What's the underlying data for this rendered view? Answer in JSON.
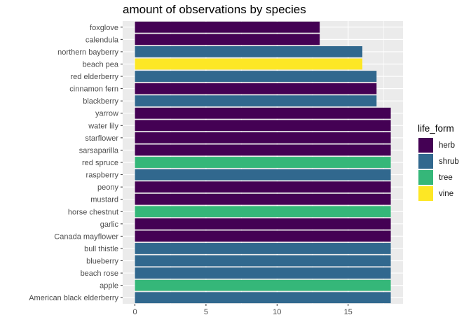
{
  "chart_data": {
    "type": "bar",
    "orientation": "horizontal",
    "title": "amount of observations by species",
    "xlabel": "",
    "ylabel": "",
    "xlim": [
      0,
      18.9
    ],
    "xticks": [
      0,
      5,
      10,
      15
    ],
    "grid": true,
    "legend": {
      "title": "life_form",
      "position": "right"
    },
    "categories": [
      "foxglove",
      "calendula",
      "northern bayberry",
      "beach pea",
      "red elderberry",
      "cinnamon fern",
      "blackberry",
      "yarrow",
      "water lily",
      "starflower",
      "sarsaparilla",
      "red spruce",
      "raspberry",
      "peony",
      "mustard",
      "horse chestnut",
      "garlic",
      "Canada mayflower",
      "bull thistle",
      "blueberry",
      "beach rose",
      "apple",
      "American black elderberry"
    ],
    "values": [
      13,
      13,
      16,
      16,
      17,
      17,
      17,
      18,
      18,
      18,
      18,
      18,
      18,
      18,
      18,
      18,
      18,
      18,
      18,
      18,
      18,
      18,
      18
    ],
    "groups": [
      "herb",
      "herb",
      "shrub",
      "vine",
      "shrub",
      "herb",
      "shrub",
      "herb",
      "herb",
      "herb",
      "herb",
      "tree",
      "shrub",
      "herb",
      "herb",
      "tree",
      "herb",
      "herb",
      "shrub",
      "shrub",
      "shrub",
      "tree",
      "shrub"
    ],
    "series": [
      {
        "name": "herb",
        "color": "#440154"
      },
      {
        "name": "shrub",
        "color": "#31688E"
      },
      {
        "name": "tree",
        "color": "#35B779"
      },
      {
        "name": "vine",
        "color": "#FDE725"
      }
    ]
  }
}
